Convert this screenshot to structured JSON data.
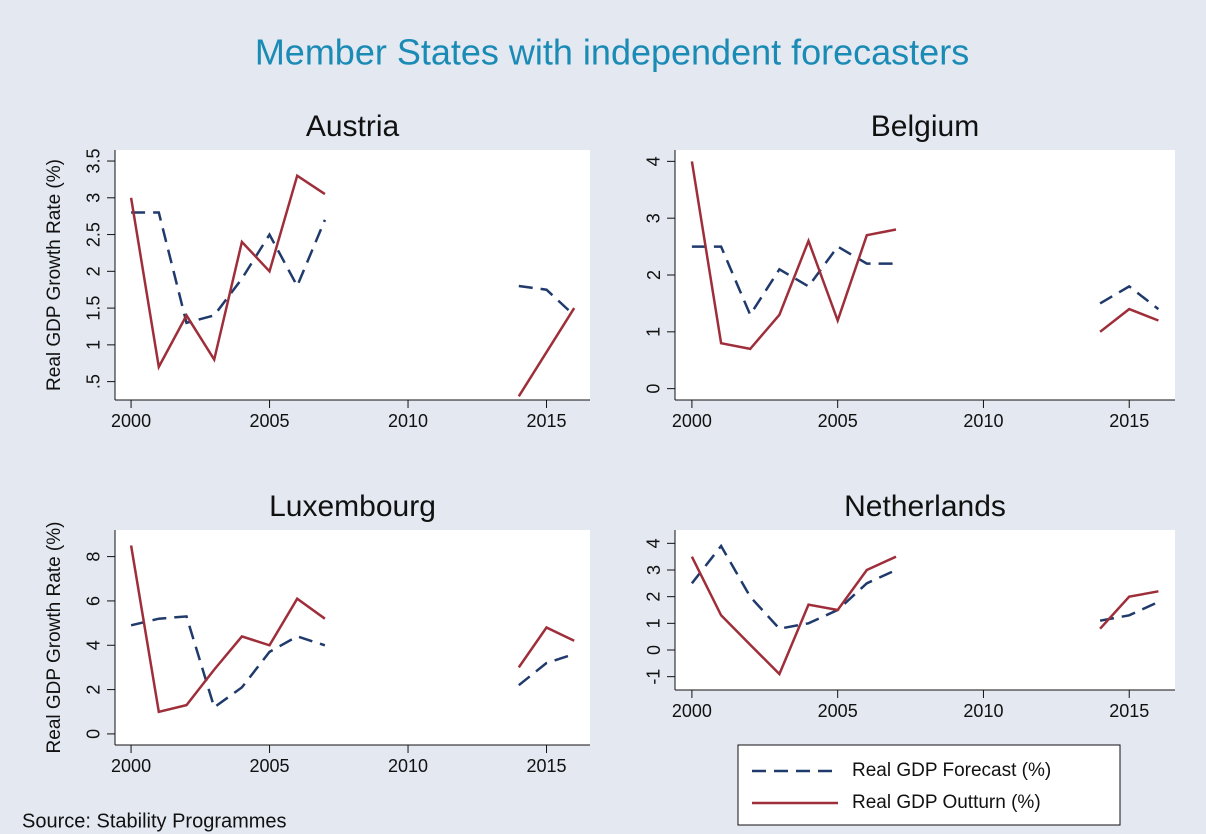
{
  "title": "Member States with independent forecasters",
  "source": "Source: Stability Programmes",
  "legend": [
    {
      "name": "Real GDP Forecast (%)",
      "color": "#1f3a6b",
      "dashed": true
    },
    {
      "name": "Real GDP Outturn (%)",
      "color": "#9e2f3a",
      "dashed": false
    }
  ],
  "chart_data": [
    {
      "type": "line",
      "title": "Austria",
      "ylabel": "Real GDP Growth Rate (%)",
      "x": [
        2000,
        2001,
        2002,
        2003,
        2004,
        2005,
        2006,
        2007,
        2008,
        2009,
        2010,
        2011,
        2012,
        2013,
        2014,
        2015,
        2016
      ],
      "series": [
        {
          "values": [
            2.8,
            2.8,
            1.3,
            1.4,
            1.9,
            2.5,
            1.8,
            2.7,
            null,
            null,
            null,
            null,
            null,
            null,
            1.8,
            1.75,
            1.4
          ]
        },
        {
          "values": [
            3.0,
            0.7,
            1.4,
            0.8,
            2.4,
            2.0,
            3.3,
            3.05,
            null,
            null,
            null,
            null,
            null,
            null,
            0.3,
            0.9,
            1.5
          ]
        }
      ],
      "xlim": [
        1999.42,
        2016.57
      ],
      "xticks": [
        2000,
        2005,
        2010,
        2015
      ],
      "ylim": [
        0.25,
        3.65
      ],
      "yticks": [
        {
          "value": 0.5,
          "label": ".5"
        },
        1,
        1.5,
        2,
        2.5,
        3,
        3.5
      ]
    },
    {
      "type": "line",
      "title": "Belgium",
      "x": [
        2000,
        2001,
        2002,
        2003,
        2004,
        2005,
        2006,
        2007,
        2008,
        2009,
        2010,
        2011,
        2012,
        2013,
        2014,
        2015,
        2016
      ],
      "series": [
        {
          "values": [
            2.5,
            2.5,
            1.3,
            2.1,
            1.8,
            2.5,
            2.2,
            2.2,
            null,
            null,
            null,
            null,
            null,
            null,
            1.5,
            1.8,
            1.4
          ]
        },
        {
          "values": [
            4.0,
            0.8,
            0.7,
            1.3,
            2.6,
            1.2,
            2.7,
            2.8,
            null,
            null,
            null,
            null,
            null,
            null,
            1.0,
            1.4,
            1.2
          ]
        }
      ],
      "xlim": [
        1999.42,
        2016.57
      ],
      "xticks": [
        2000,
        2005,
        2010,
        2015
      ],
      "ylim": [
        -0.2,
        4.2
      ],
      "yticks": [
        0,
        1,
        2,
        3,
        4
      ]
    },
    {
      "type": "line",
      "title": "Luxembourg",
      "ylabel": "Real GDP Growth Rate (%)",
      "x": [
        2000,
        2001,
        2002,
        2003,
        2004,
        2005,
        2006,
        2007,
        2008,
        2009,
        2010,
        2011,
        2012,
        2013,
        2014,
        2015,
        2016
      ],
      "series": [
        {
          "values": [
            4.9,
            5.2,
            5.3,
            1.2,
            2.1,
            3.7,
            4.4,
            4.0,
            null,
            null,
            null,
            null,
            null,
            null,
            2.2,
            3.2,
            3.6
          ]
        },
        {
          "values": [
            8.5,
            1.0,
            1.3,
            2.9,
            4.4,
            4.0,
            6.1,
            5.2,
            null,
            null,
            null,
            null,
            null,
            null,
            3.0,
            4.8,
            4.2
          ]
        }
      ],
      "xlim": [
        1999.42,
        2016.57
      ],
      "xticks": [
        2000,
        2005,
        2010,
        2015
      ],
      "ylim": [
        -0.5,
        9.2
      ],
      "yticks": [
        0,
        2,
        4,
        6,
        8
      ]
    },
    {
      "type": "line",
      "title": "Netherlands",
      "x": [
        2000,
        2001,
        2002,
        2003,
        2004,
        2005,
        2006,
        2007,
        2008,
        2009,
        2010,
        2011,
        2012,
        2013,
        2014,
        2015,
        2016
      ],
      "series": [
        {
          "values": [
            2.5,
            3.9,
            2.0,
            0.8,
            1.0,
            1.5,
            2.5,
            3.0,
            null,
            null,
            null,
            null,
            null,
            null,
            1.1,
            1.3,
            1.8
          ]
        },
        {
          "values": [
            3.5,
            1.3,
            0.2,
            -0.9,
            1.7,
            1.5,
            3.0,
            3.5,
            null,
            null,
            null,
            null,
            null,
            null,
            0.8,
            2.0,
            2.2
          ]
        }
      ],
      "xlim": [
        1999.42,
        2016.57
      ],
      "xticks": [
        2000,
        2005,
        2010,
        2015
      ],
      "ylim": [
        -1.5,
        4.5
      ],
      "yticks": [
        -1,
        0,
        1,
        2,
        3,
        4
      ]
    }
  ]
}
